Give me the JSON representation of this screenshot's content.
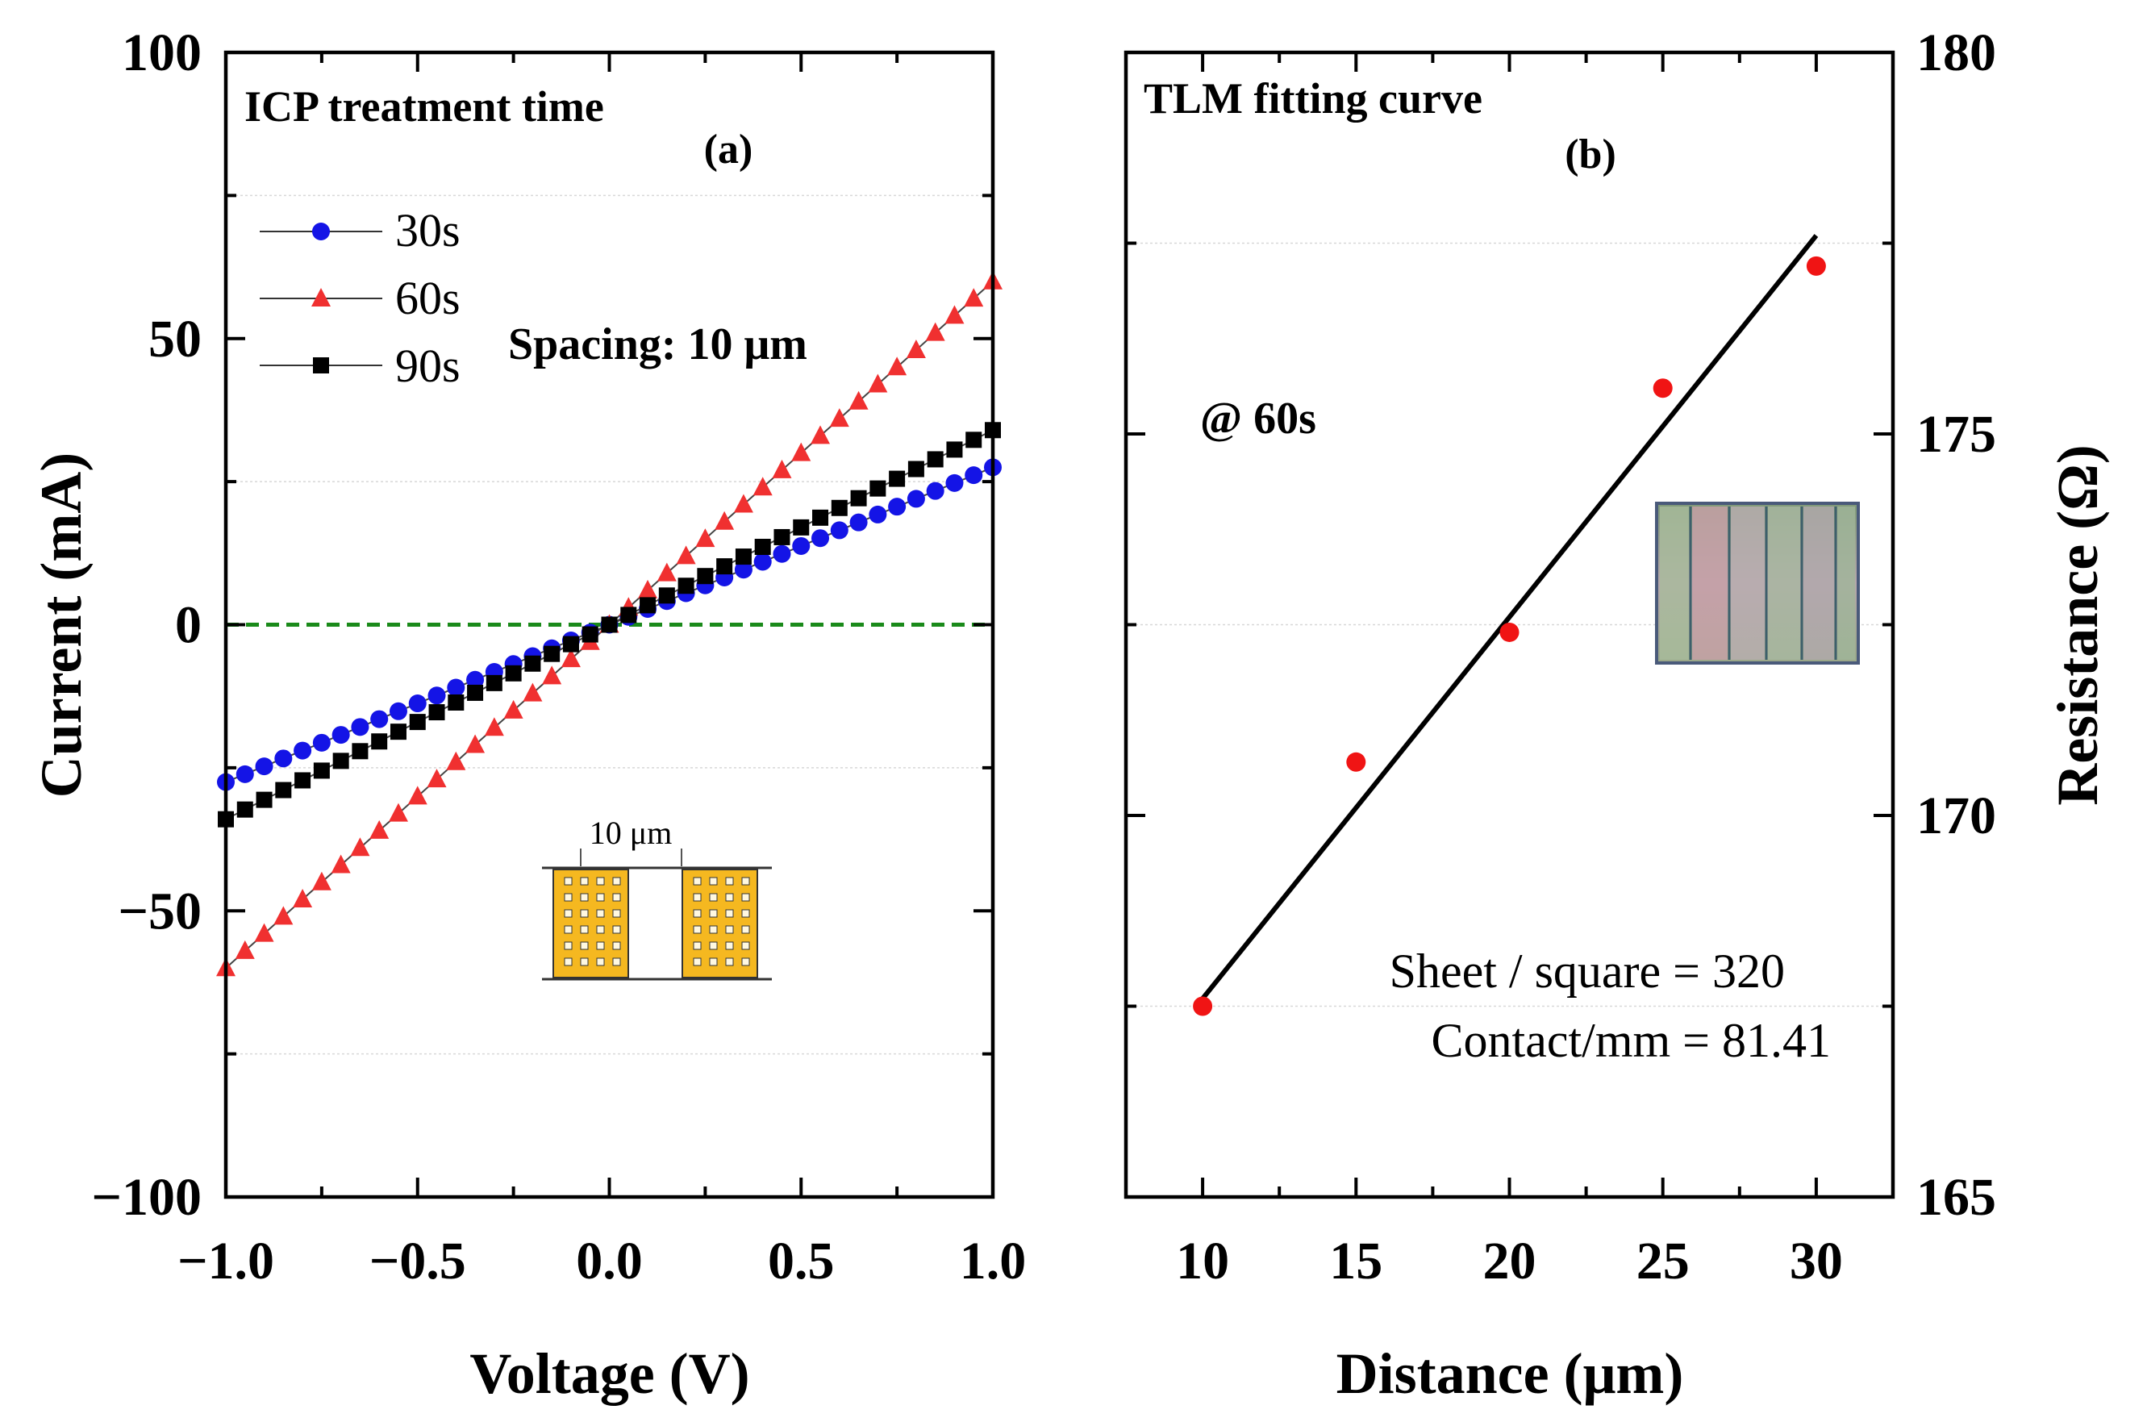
{
  "chart_data": [
    {
      "panel": "(a)",
      "type": "line",
      "title": "ICP treatment time",
      "xlabel": "Voltage (V)",
      "ylabel": "Current (mA)",
      "xlim": [
        -1.0,
        1.0
      ],
      "ylim": [
        -100,
        100
      ],
      "xticks": [
        -1.0,
        -0.5,
        0.0,
        0.5,
        1.0
      ],
      "xtick_labels": [
        "−1.0",
        "−0.5",
        "0.0",
        "0.5",
        "1.0"
      ],
      "yticks": [
        -100,
        -50,
        0,
        50,
        100
      ],
      "ytick_labels": [
        "−100",
        "−50",
        "0",
        "50",
        "100"
      ],
      "zero_line": {
        "y": 0,
        "color": "#1a8a1a",
        "style": "dashed"
      },
      "series": [
        {
          "name": "30s",
          "marker": "circle",
          "color": "#1414e6",
          "slope_mA_per_V": 27.5
        },
        {
          "name": "60s",
          "marker": "triangle",
          "color": "#f03030",
          "slope_mA_per_V": 60
        },
        {
          "name": "90s",
          "marker": "square",
          "color": "#000000",
          "slope_mA_per_V": 34
        }
      ],
      "x_step": 0.05,
      "legend": {
        "position": "top-left"
      },
      "annotations": {
        "spacing": "Spacing: 10 μm",
        "panel_label": "(a)",
        "inset_label": "10 μm"
      },
      "colors": {
        "pad": "#f5b820",
        "pad_edge": "#333333"
      }
    },
    {
      "panel": "(b)",
      "type": "scatter",
      "title": "TLM fitting curve",
      "xlabel": "Distance (μm)",
      "ylabel": "Resistance (Ω)",
      "xlim": [
        7.5,
        32.5
      ],
      "ylim": [
        165,
        180
      ],
      "xticks": [
        10,
        15,
        20,
        25,
        30
      ],
      "xtick_labels": [
        "10",
        "15",
        "20",
        "25",
        "30"
      ],
      "yticks": [
        165,
        170,
        175,
        180
      ],
      "ytick_labels": [
        "165",
        "170",
        "175",
        "180"
      ],
      "points": {
        "x": [
          10,
          15,
          20,
          25,
          30
        ],
        "y": [
          167.5,
          170.7,
          172.4,
          175.6,
          177.2
        ],
        "color": "#f01414"
      },
      "fit_line": {
        "x": [
          10,
          30
        ],
        "y": [
          167.6,
          177.6
        ],
        "color": "#000000"
      },
      "annotations": {
        "condition": "@ 60s",
        "panel_label": "(b)",
        "sheet": "Sheet / square = 320",
        "contact": "Contact/mm = 81.41"
      }
    }
  ]
}
